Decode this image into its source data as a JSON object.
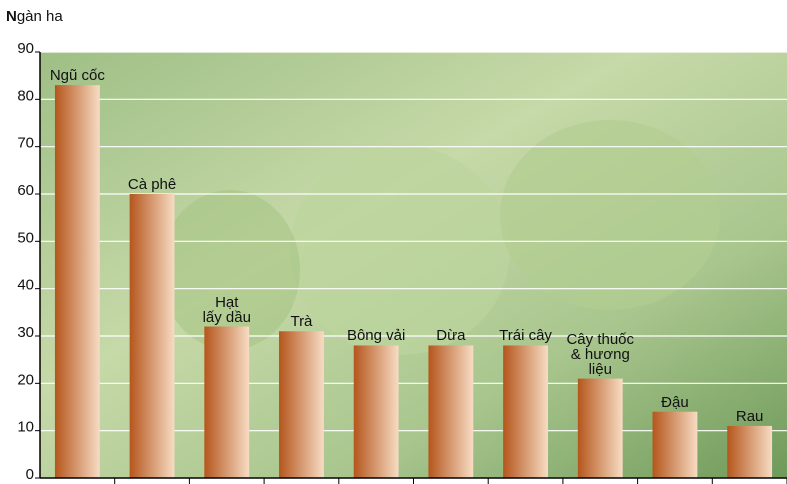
{
  "chart_data": {
    "type": "bar",
    "y_label": "Ngàn ha",
    "categories": [
      "Ngũ cốc",
      "Cà phê",
      "Hạt\nlấy dầu",
      "Trà",
      "Bông vải",
      "Dừa",
      "Trái cây",
      "Cây thuốc\n& hương\nliệu",
      "Đậu",
      "Rau"
    ],
    "values": [
      83,
      60,
      32,
      31,
      28,
      28,
      28,
      21,
      14,
      11
    ],
    "color": "#b5561c",
    "ylim": [
      0,
      90
    ],
    "yticks": [
      0,
      10,
      20,
      30,
      40,
      50,
      60,
      70,
      80,
      90
    ],
    "grid": true
  }
}
